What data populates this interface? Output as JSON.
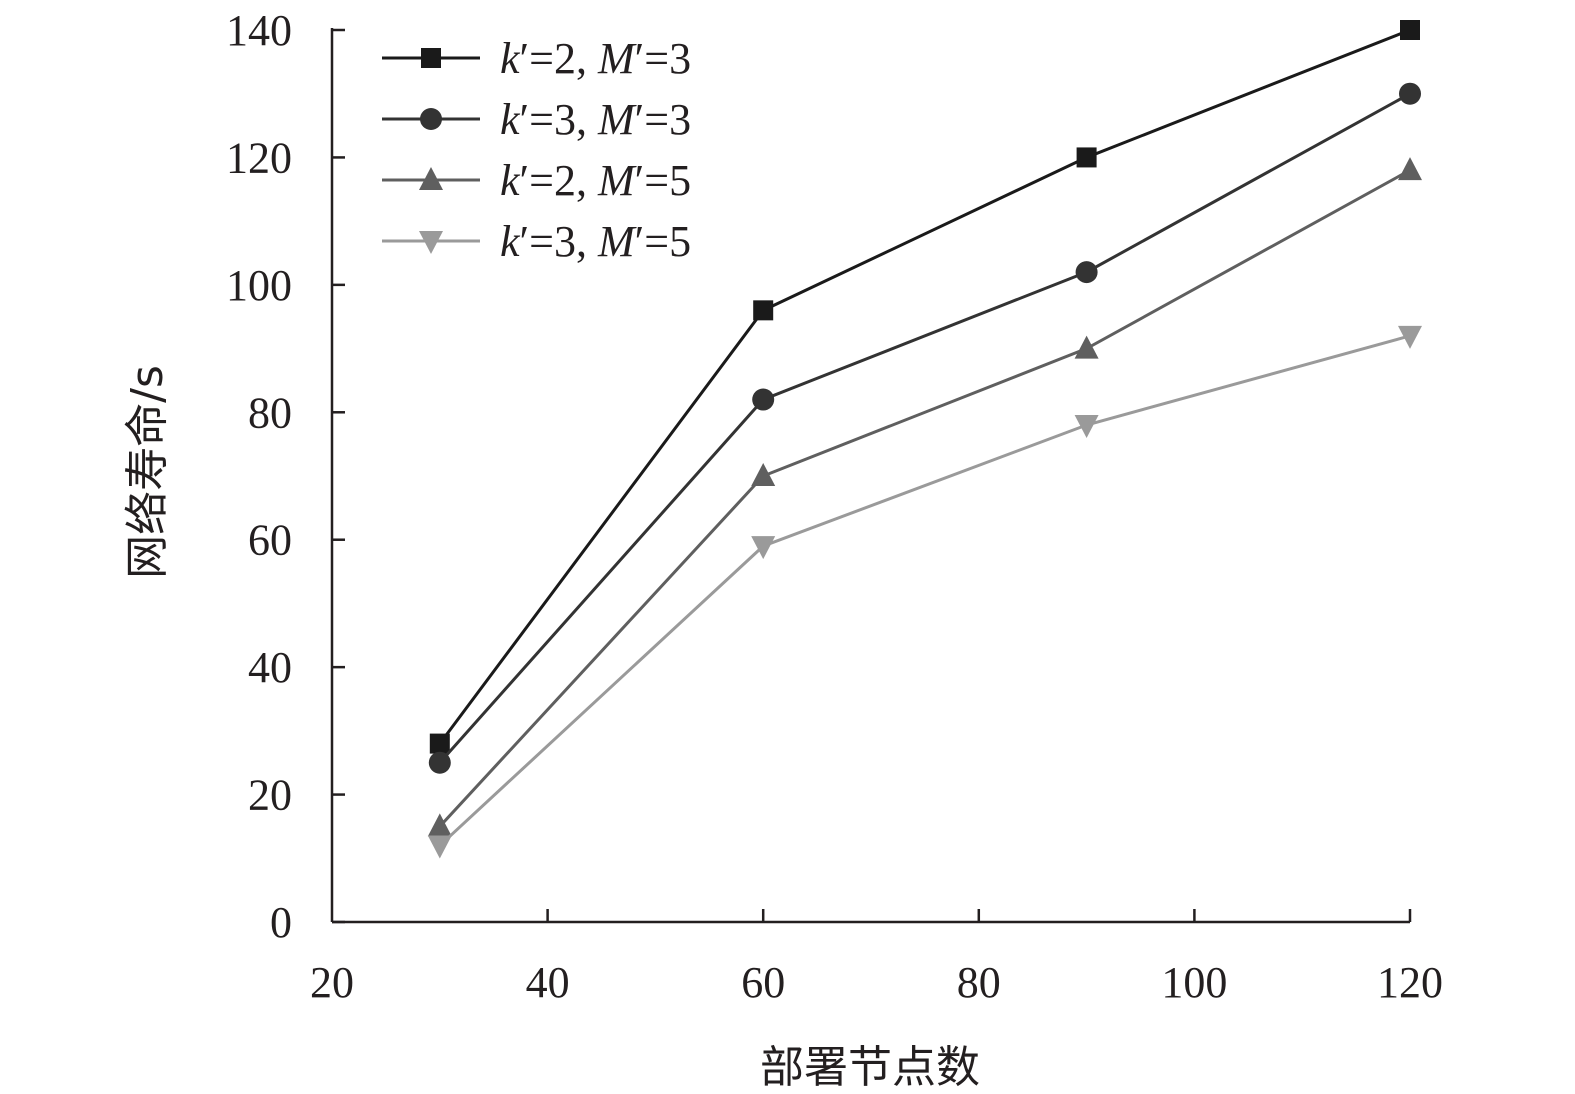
{
  "chart_data": {
    "type": "line",
    "title": "",
    "xlabel": "部署节点数",
    "ylabel": "网络寿命/s",
    "xlim": [
      20,
      120
    ],
    "ylim": [
      0,
      140
    ],
    "xticks": [
      20,
      40,
      60,
      80,
      100,
      120
    ],
    "yticks": [
      0,
      20,
      40,
      60,
      80,
      100,
      120,
      140
    ],
    "x": [
      30,
      60,
      90,
      120
    ],
    "grid": false,
    "legend_position": "top-left",
    "series": [
      {
        "name": "k′=2, M′=3",
        "legend": {
          "k_part": "k",
          "k_rest": "′=2, ",
          "m_part": "M",
          "m_rest": "′=3"
        },
        "values": [
          28,
          96,
          120,
          140
        ],
        "color": "#1a1a1a",
        "marker": "square"
      },
      {
        "name": "k′=3, M′=3",
        "legend": {
          "k_part": "k",
          "k_rest": "′=3, ",
          "m_part": "M",
          "m_rest": "′=3"
        },
        "values": [
          25,
          82,
          102,
          130
        ],
        "color": "#333333",
        "marker": "circle"
      },
      {
        "name": "k′=2, M′=5",
        "legend": {
          "k_part": "k",
          "k_rest": "′=2, ",
          "m_part": "M",
          "m_rest": "′=5"
        },
        "values": [
          15,
          70,
          90,
          118
        ],
        "color": "#5f5f5f",
        "marker": "triangle-up"
      },
      {
        "name": "k′=3, M′=5",
        "legend": {
          "k_part": "k",
          "k_rest": "′=3, ",
          "m_part": "M",
          "m_rest": "′=5"
        },
        "values": [
          12,
          59,
          78,
          92
        ],
        "color": "#9a9a9a",
        "marker": "triangle-down"
      }
    ]
  }
}
